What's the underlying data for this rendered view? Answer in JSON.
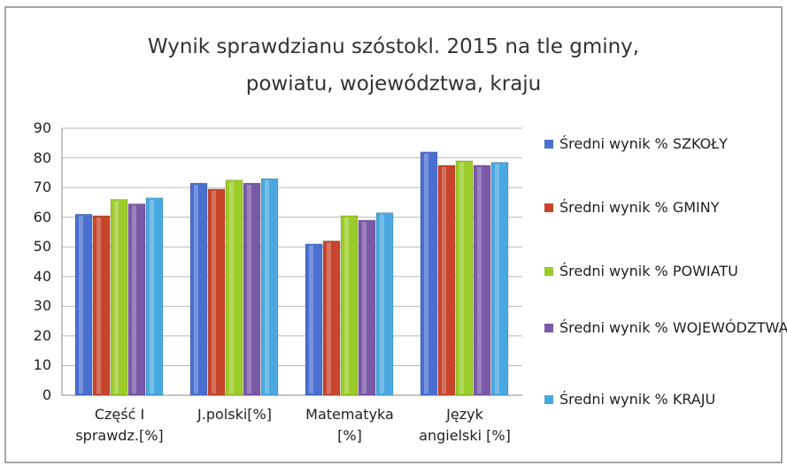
{
  "chart_data": {
    "type": "bar",
    "title": "Wynik sprawdzianu szóstokl. 2015 na tle gminy,\npowiatu, województwa, kraju",
    "categories": [
      "Część I\nsprawdz.[%]",
      "J.polski[%]",
      "Matematyka\n[%]",
      "Język\nangielski [%]"
    ],
    "series": [
      {
        "name": "Średni wynik % SZKOŁY",
        "color": "#4a6fd0",
        "values": [
          61,
          71.5,
          51,
          82
        ]
      },
      {
        "name": "Średni wynik % GMINY",
        "color": "#c8452c",
        "values": [
          60.5,
          69.5,
          52,
          77.5
        ]
      },
      {
        "name": "Średni wynik % POWIATU",
        "color": "#9ccc28",
        "values": [
          66,
          72.5,
          60.5,
          79
        ]
      },
      {
        "name": "Średni wynik % WOJEWÓDZTWA",
        "color": "#7a5aa8",
        "values": [
          64.5,
          71.5,
          59,
          77.5
        ]
      },
      {
        "name": "Średni wynik % KRAJU",
        "color": "#4aa8e0",
        "values": [
          66.5,
          73,
          61.5,
          78.5
        ]
      }
    ],
    "ylim": [
      0,
      90
    ],
    "yticks": [
      0,
      10,
      20,
      30,
      40,
      50,
      60,
      70,
      80,
      90
    ],
    "grid": true,
    "legend": "right"
  }
}
